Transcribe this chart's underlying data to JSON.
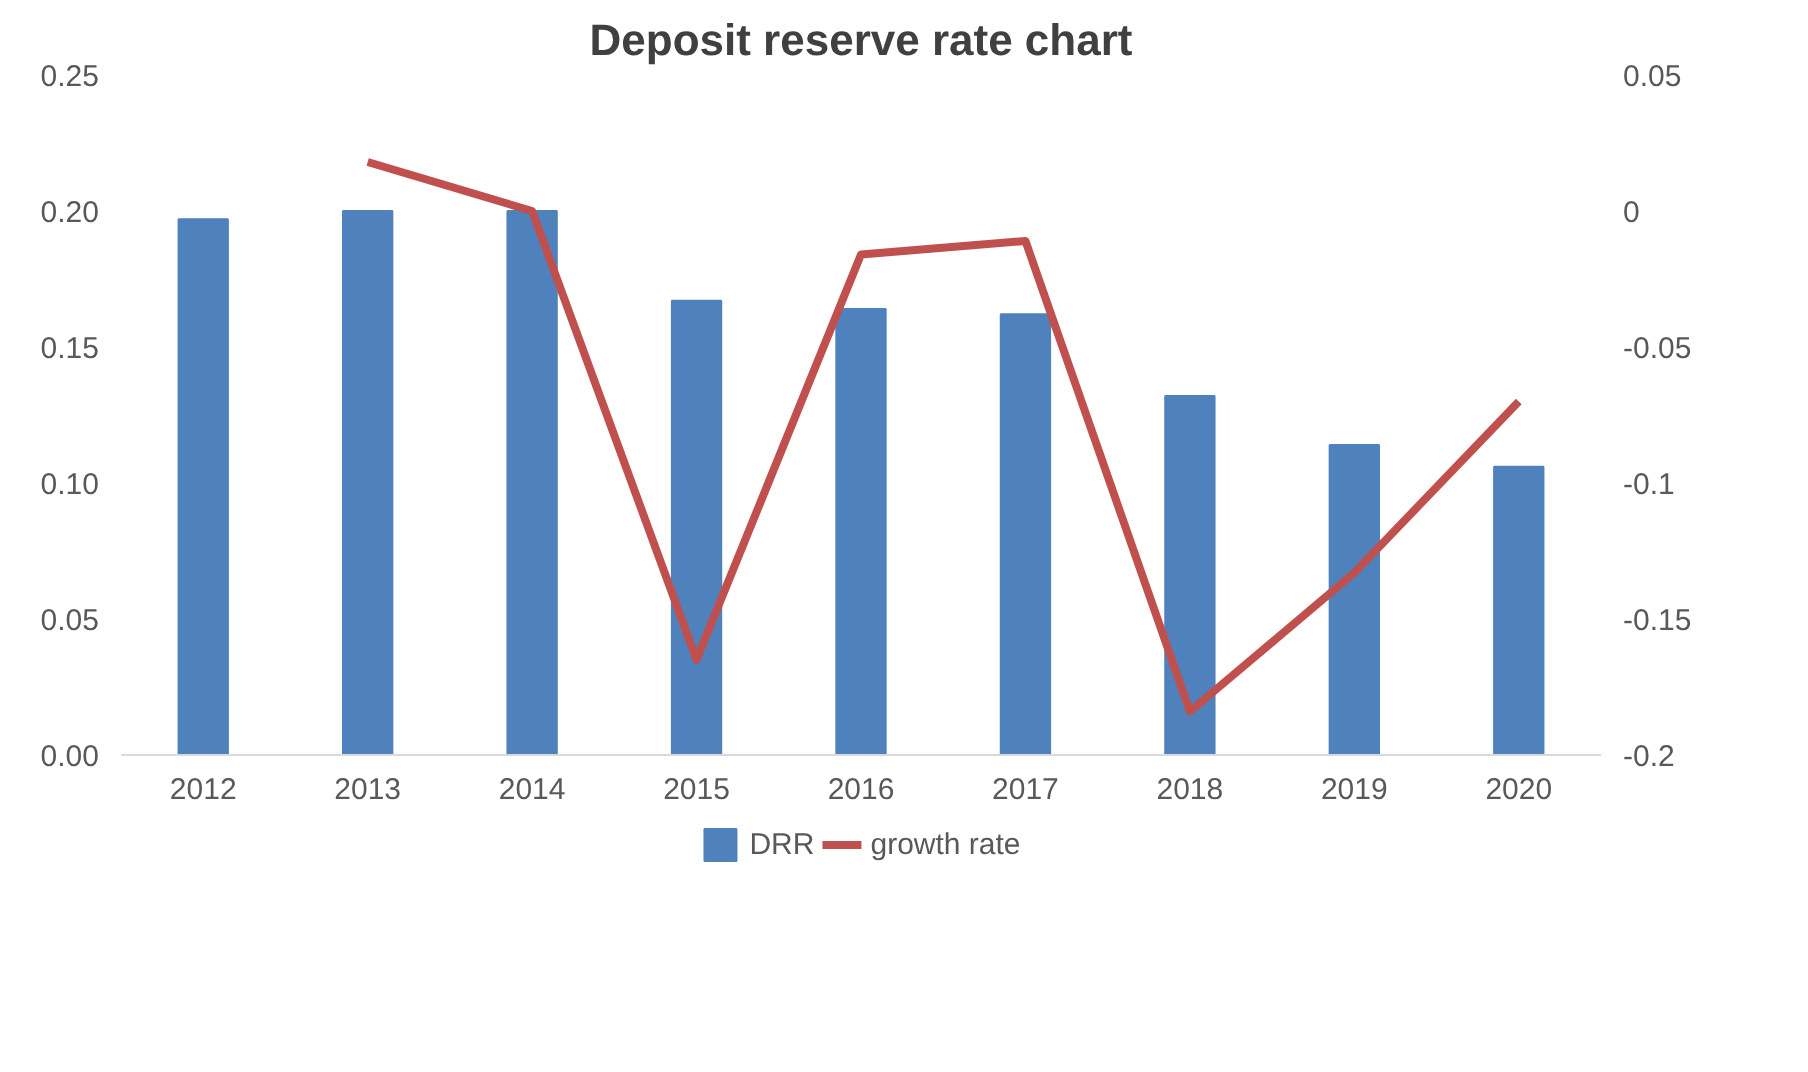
{
  "chart_data": {
    "type": "bar",
    "title": "Deposit reserve rate chart",
    "categories": [
      "2012",
      "2013",
      "2014",
      "2015",
      "2016",
      "2017",
      "2018",
      "2019",
      "2020"
    ],
    "series": [
      {
        "name": "DRR",
        "color": "#4f81bd",
        "values": [
          0.197,
          0.2,
          0.2,
          0.167,
          0.164,
          0.162,
          0.132,
          0.114,
          0.106
        ]
      },
      {
        "name": "growth rate",
        "type": "line",
        "axis": "y2",
        "color": "#c0504d",
        "values": [
          null,
          0.018,
          0.0,
          -0.165,
          -0.016,
          -0.011,
          -0.184,
          -0.133,
          -0.07
        ]
      }
    ],
    "ylim": [
      0,
      0.25
    ],
    "yticks": [
      {
        "value": 0,
        "label": "0.00"
      },
      {
        "value": 0.05,
        "label": "0.05"
      },
      {
        "value": 0.1,
        "label": "0.10"
      },
      {
        "value": 0.15,
        "label": "0.15"
      },
      {
        "value": 0.2,
        "label": "0.20"
      },
      {
        "value": 0.25,
        "label": "0.25"
      }
    ],
    "y2lim": [
      -0.2,
      0.05
    ],
    "y2ticks": [
      -0.2,
      -0.15,
      -0.1,
      -0.05,
      0,
      0.05
    ],
    "legend": "bottom",
    "grid": false
  }
}
